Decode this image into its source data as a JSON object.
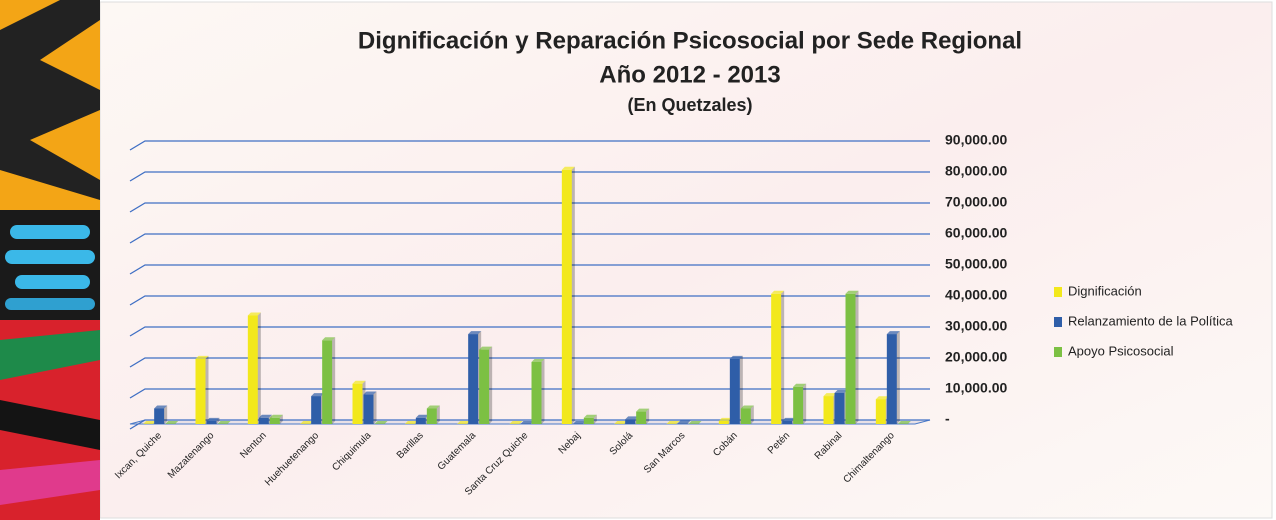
{
  "chart_data": {
    "type": "bar",
    "title": "Dignificación y Reparación Psicosocial por Sede Regional",
    "subtitle": "Año 2012 - 2013",
    "note": "(En Quetzales)",
    "categories": [
      "Ixcan, Quiche",
      "Mazatenango",
      "Nenton",
      "Huehuetenango",
      "Chiquimula",
      "Barillas",
      "Guatemala",
      "Santa Cruz Quiche",
      "Nebaj",
      "Sololá",
      "San Marcos",
      "Cobán",
      "Petén",
      "Rabinal",
      "Chimaltenango"
    ],
    "series": [
      {
        "name": "Dignificación",
        "color": "#f2e81c",
        "values": [
          0,
          21000,
          35000,
          0,
          13000,
          0,
          0,
          0,
          82000,
          0,
          0,
          1000,
          42000,
          9000,
          8000
        ]
      },
      {
        "name": "Relanzamiento de  la Política",
        "color": "#2f5ea8",
        "values": [
          5000,
          1000,
          2000,
          9000,
          9500,
          2000,
          29000,
          0,
          0,
          1500,
          200,
          21000,
          1000,
          10000,
          29000
        ]
      },
      {
        "name": "Apoyo Psicosocial",
        "color": "#7cc043",
        "values": [
          0,
          0,
          2000,
          27000,
          0,
          5000,
          24000,
          20000,
          2000,
          4000,
          0,
          5000,
          12000,
          42000,
          0
        ]
      }
    ],
    "ylim": [
      0,
      90000
    ],
    "yticks": [
      {
        "value": 0,
        "label": "-"
      },
      {
        "value": 10000,
        "label": "10,000.00"
      },
      {
        "value": 20000,
        "label": "20,000.00"
      },
      {
        "value": 30000,
        "label": "30,000.00"
      },
      {
        "value": 40000,
        "label": "40,000.00"
      },
      {
        "value": 50000,
        "label": "50,000.00"
      },
      {
        "value": 60000,
        "label": "60,000.00"
      },
      {
        "value": 70000,
        "label": "70,000.00"
      },
      {
        "value": 80000,
        "label": "80,000.00"
      },
      {
        "value": 90000,
        "label": "90,000.00"
      }
    ],
    "grid": true
  }
}
